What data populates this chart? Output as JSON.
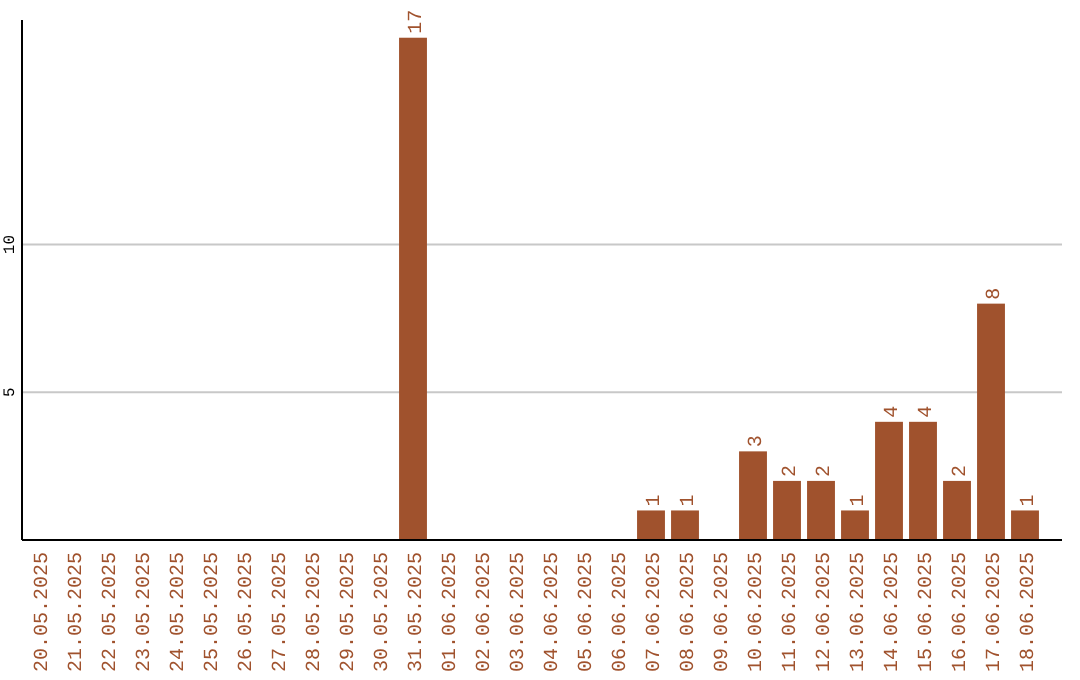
{
  "chart_data": {
    "type": "bar",
    "categories": [
      "20.05.2025",
      "21.05.2025",
      "22.05.2025",
      "23.05.2025",
      "24.05.2025",
      "25.05.2025",
      "26.05.2025",
      "27.05.2025",
      "28.05.2025",
      "29.05.2025",
      "30.05.2025",
      "31.05.2025",
      "01.06.2025",
      "02.06.2025",
      "03.06.2025",
      "04.06.2025",
      "05.06.2025",
      "06.06.2025",
      "07.06.2025",
      "08.06.2025",
      "09.06.2025",
      "10.06.2025",
      "11.06.2025",
      "12.06.2025",
      "13.06.2025",
      "14.06.2025",
      "15.06.2025",
      "16.06.2025",
      "17.06.2025",
      "18.06.2025"
    ],
    "values": [
      0,
      0,
      0,
      0,
      0,
      0,
      0,
      0,
      0,
      0,
      0,
      17,
      0,
      0,
      0,
      0,
      0,
      0,
      1,
      1,
      0,
      3,
      2,
      2,
      1,
      4,
      4,
      2,
      8,
      1
    ],
    "value_labels": [
      null,
      null,
      null,
      null,
      null,
      null,
      null,
      null,
      null,
      null,
      null,
      "17",
      null,
      null,
      null,
      null,
      null,
      null,
      "1",
      "1",
      null,
      "3",
      "2",
      "2",
      "1",
      "4",
      "4",
      "2",
      "8",
      "1"
    ],
    "color": "#a0522d",
    "ylim": [
      0,
      17.6
    ],
    "yticks": [
      5,
      10
    ],
    "grid": "y"
  }
}
